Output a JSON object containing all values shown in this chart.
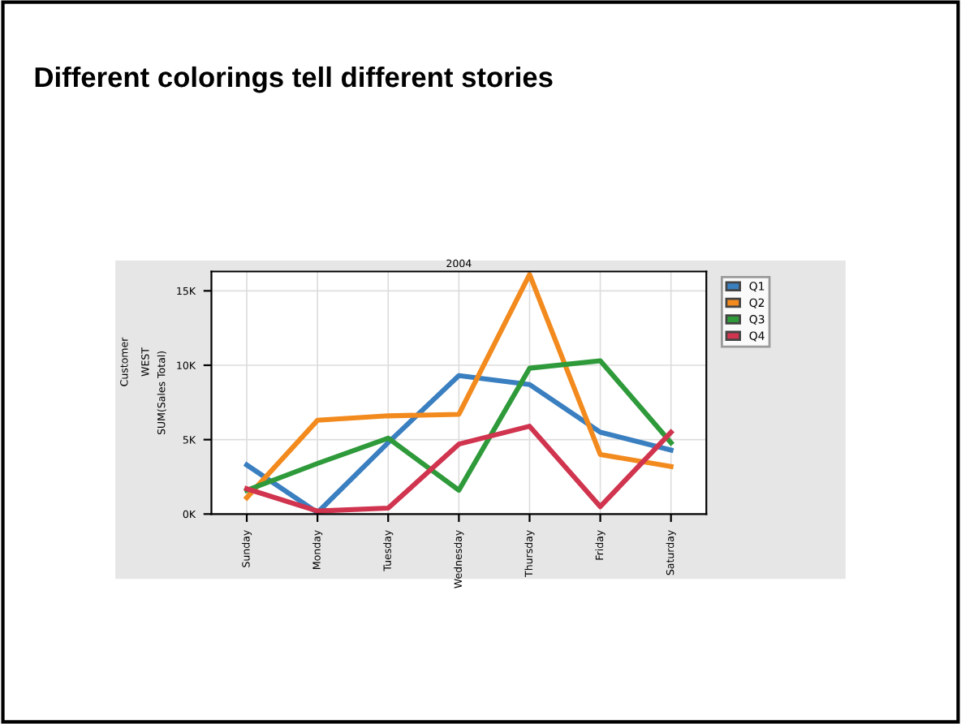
{
  "chart_data": {
    "type": "line",
    "title": "Different colorings tell different stories",
    "subtitle": "2004",
    "ylabel": "SUM(Sales Total)",
    "annotations": [
      "Customer",
      "WEST"
    ],
    "categories": [
      "Sunday",
      "Monday",
      "Tuesday",
      "Wednesday",
      "Thursday",
      "Friday",
      "Saturday"
    ],
    "series": [
      {
        "name": "Q1",
        "color": "#3a7fc0",
        "values": [
          3.3,
          0.1,
          4.8,
          9.3,
          8.7,
          5.5,
          4.3
        ]
      },
      {
        "name": "Q2",
        "color": "#f28a1e",
        "values": [
          1.1,
          6.3,
          6.6,
          6.7,
          16.1,
          4.0,
          3.2
        ]
      },
      {
        "name": "Q3",
        "color": "#2e9a3a",
        "values": [
          1.6,
          3.4,
          5.1,
          1.6,
          9.8,
          10.3,
          4.8
        ]
      },
      {
        "name": "Q4",
        "color": "#d0344e",
        "values": [
          1.7,
          0.2,
          0.4,
          4.7,
          5.9,
          0.5,
          5.5
        ]
      }
    ],
    "ylim": [
      0,
      16.3
    ],
    "yticks": [
      {
        "value": 0,
        "label": "0K"
      },
      {
        "value": 5,
        "label": "5K"
      },
      {
        "value": 10,
        "label": "10K"
      },
      {
        "value": 15,
        "label": "15K"
      }
    ],
    "grid": true,
    "legend": "top right",
    "marker": "none",
    "line_style": "solid"
  }
}
